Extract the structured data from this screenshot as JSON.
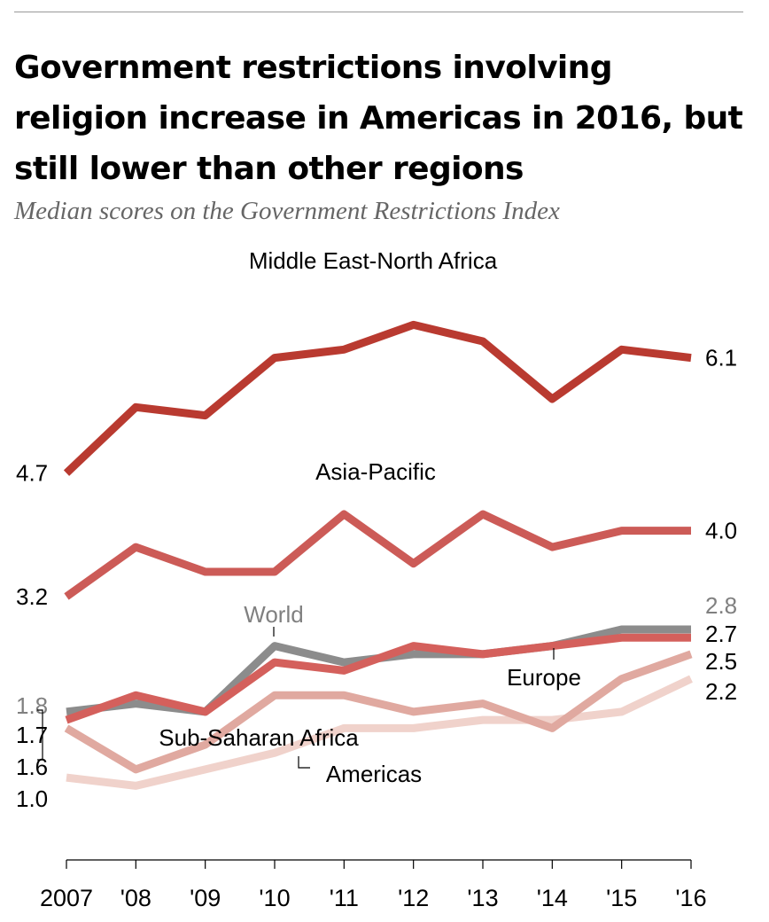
{
  "title": "Government restrictions involving religion increase in Americas in 2016, but still lower than other regions",
  "subtitle": "Median scores on the Government Restrictions Index",
  "colors": {
    "middle_east": "#b93a30",
    "asia": "#cc5b57",
    "world": "#8c8c8c",
    "europe": "#d4605c",
    "africa": "#e0a9a0",
    "americas": "#f0d2cb",
    "text_gray": "#808080",
    "text": "#000000"
  },
  "chart_data": {
    "type": "line",
    "x": [
      "2007",
      "'08",
      "'09",
      "'10",
      "'11",
      "'12",
      "'13",
      "'14",
      "'15",
      "'16"
    ],
    "series": [
      {
        "key": "middle_east",
        "name": "Middle East-North Africa",
        "values": [
          4.7,
          5.5,
          5.4,
          6.1,
          6.2,
          6.5,
          6.3,
          5.6,
          6.2,
          6.1
        ],
        "start_label": "4.7",
        "end_label": "6.1"
      },
      {
        "key": "asia",
        "name": "Asia-Pacific",
        "values": [
          3.2,
          3.8,
          3.5,
          3.5,
          4.2,
          3.6,
          4.2,
          3.8,
          4.0,
          4.0
        ],
        "start_label": "3.2",
        "end_label": "4.0"
      },
      {
        "key": "world",
        "name": "World",
        "values": [
          1.8,
          1.9,
          1.8,
          2.6,
          2.4,
          2.5,
          2.5,
          2.6,
          2.8,
          2.8
        ],
        "start_label": "1.8",
        "end_label": "2.8"
      },
      {
        "key": "europe",
        "name": "Europe",
        "values": [
          1.7,
          2.0,
          1.8,
          2.4,
          2.3,
          2.6,
          2.5,
          2.6,
          2.7,
          2.7
        ],
        "start_label": "1.7",
        "end_label": "2.7"
      },
      {
        "key": "africa",
        "name": "Sub-Saharan Africa",
        "values": [
          1.6,
          1.1,
          1.4,
          2.0,
          2.0,
          1.8,
          1.9,
          1.6,
          2.2,
          2.5
        ],
        "start_label": "1.6",
        "end_label": "2.5"
      },
      {
        "key": "americas",
        "name": "Americas",
        "values": [
          1.0,
          0.9,
          1.1,
          1.3,
          1.6,
          1.6,
          1.7,
          1.7,
          1.8,
          2.2
        ],
        "start_label": "1.0",
        "end_label": "2.2"
      }
    ],
    "ylim": [
      0,
      7
    ],
    "grid": false,
    "legend": "inline labels"
  }
}
